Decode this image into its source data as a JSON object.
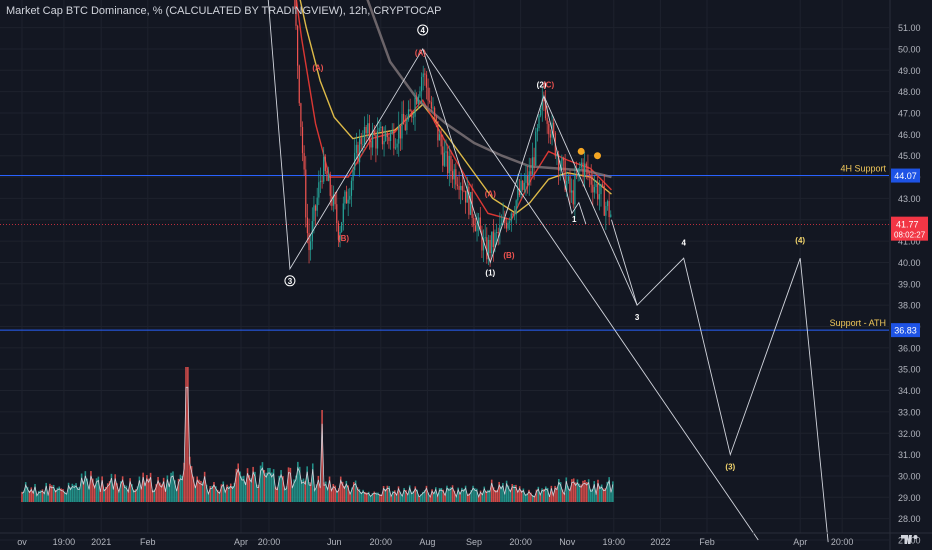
{
  "header": {
    "title": "Market Cap BTC Dominance, % (CALCULATED BY TRADINGVIEW), 12h, CRYPTOCAP"
  },
  "colors": {
    "background": "#131722",
    "grid": "#1e222d",
    "axis_text": "#b2b5be",
    "up": "#26a69a",
    "down": "#ef5350",
    "support_line": "#2962ff",
    "price_label_bg": "#f23645",
    "ma_yellow": "#e8c34b",
    "ma_red": "#e53935",
    "ma_gray": "#8a7f82",
    "projection": "#d1d4dc",
    "wave_label": "#ffffff",
    "wave_label_red": "#ef5350",
    "support_label_bg": "#1e53e5"
  },
  "chart_data": {
    "type": "line",
    "symbol": "BTC.D",
    "timeframe": "12h",
    "price_axis": {
      "ticks": [
        "27.00",
        "28.00",
        "29.00",
        "30.00",
        "31.00",
        "32.00",
        "33.00",
        "34.00",
        "35.00",
        "36.00",
        "37.00",
        "38.00",
        "39.00",
        "40.00",
        "41.00",
        "42.00",
        "43.00",
        "44.00",
        "45.00",
        "46.00",
        "47.00",
        "48.00",
        "49.00",
        "50.00",
        "51.00"
      ],
      "ylim": [
        26.8,
        51.2
      ]
    },
    "time_axis": {
      "ticks": [
        {
          "label": "ov",
          "t": 0.3
        },
        {
          "label": "19:00",
          "t": 1.2
        },
        {
          "label": "2021",
          "t": 2.0
        },
        {
          "label": "Feb",
          "t": 3.0
        },
        {
          "label": "Apr",
          "t": 5.0
        },
        {
          "label": "20:00",
          "t": 5.6
        },
        {
          "label": "Jun",
          "t": 7.0
        },
        {
          "label": "20:00",
          "t": 8.0
        },
        {
          "label": "Aug",
          "t": 9.0
        },
        {
          "label": "Sep",
          "t": 10.0
        },
        {
          "label": "20:00",
          "t": 11.0
        },
        {
          "label": "Nov",
          "t": 12.0
        },
        {
          "label": "19:00",
          "t": 13.0
        },
        {
          "label": "2022",
          "t": 14.0
        },
        {
          "label": "Feb",
          "t": 15.0
        },
        {
          "label": "Apr",
          "t": 17.0
        },
        {
          "label": "20:00",
          "t": 17.9
        }
      ]
    },
    "price_path": [
      [
        4.4,
        68.0
      ],
      [
        5.3,
        62.0
      ],
      [
        5.8,
        60.0
      ],
      [
        6.0,
        58.0
      ],
      [
        6.2,
        50.0
      ],
      [
        6.35,
        44.0
      ],
      [
        6.45,
        40.5
      ],
      [
        6.6,
        42.5
      ],
      [
        6.75,
        44.5
      ],
      [
        6.95,
        43.0
      ],
      [
        7.1,
        41.5
      ],
      [
        7.25,
        43.0
      ],
      [
        7.6,
        46.0
      ],
      [
        7.9,
        45.8
      ],
      [
        8.3,
        46.0
      ],
      [
        8.6,
        46.6
      ],
      [
        8.9,
        49.0
      ],
      [
        9.15,
        46.6
      ],
      [
        9.4,
        44.6
      ],
      [
        9.7,
        44.0
      ],
      [
        10.0,
        42.2
      ],
      [
        10.25,
        40.5
      ],
      [
        10.5,
        41.2
      ],
      [
        10.8,
        42.5
      ],
      [
        11.2,
        44.0
      ],
      [
        11.5,
        47.6
      ],
      [
        11.7,
        45.8
      ],
      [
        11.9,
        44.3
      ],
      [
        12.1,
        43.0
      ],
      [
        12.3,
        44.6
      ],
      [
        12.55,
        43.8
      ],
      [
        12.8,
        42.8
      ],
      [
        12.95,
        42.2
      ]
    ],
    "moving_averages": [
      {
        "color": "yellow",
        "points": [
          [
            5.9,
            56.0
          ],
          [
            6.4,
            51.0
          ],
          [
            6.7,
            48.5
          ],
          [
            7.0,
            46.8
          ],
          [
            7.4,
            45.8
          ],
          [
            7.8,
            46.0
          ],
          [
            8.3,
            46.2
          ],
          [
            8.9,
            47.4
          ],
          [
            9.4,
            46.0
          ],
          [
            9.9,
            44.5
          ],
          [
            10.4,
            43.0
          ],
          [
            10.9,
            42.3
          ],
          [
            11.2,
            42.8
          ],
          [
            11.6,
            43.9
          ],
          [
            12.0,
            44.2
          ],
          [
            12.5,
            44.0
          ],
          [
            12.95,
            43.2
          ]
        ]
      },
      {
        "color": "red",
        "points": [
          [
            5.9,
            57.0
          ],
          [
            6.3,
            50.5
          ],
          [
            6.6,
            46.5
          ],
          [
            6.9,
            44.0
          ],
          [
            7.3,
            44.0
          ],
          [
            7.8,
            45.8
          ],
          [
            8.3,
            46.1
          ],
          [
            8.9,
            47.6
          ],
          [
            9.4,
            45.6
          ],
          [
            9.9,
            43.7
          ],
          [
            10.3,
            42.3
          ],
          [
            10.8,
            42.0
          ],
          [
            11.2,
            43.8
          ],
          [
            11.6,
            45.2
          ],
          [
            12.0,
            44.8
          ],
          [
            12.5,
            44.4
          ],
          [
            12.95,
            43.4
          ]
        ]
      },
      {
        "color": "gray",
        "points": [
          [
            7.0,
            60.0
          ],
          [
            7.6,
            53.0
          ],
          [
            8.2,
            49.4
          ],
          [
            8.8,
            47.6
          ],
          [
            9.4,
            46.5
          ],
          [
            10.0,
            45.6
          ],
          [
            10.6,
            45.0
          ],
          [
            11.2,
            44.5
          ],
          [
            11.8,
            44.4
          ],
          [
            12.4,
            44.3
          ],
          [
            12.95,
            44.0
          ]
        ]
      }
    ],
    "wave_lines": [
      [
        [
          5.3,
          60.0
        ],
        [
          6.05,
          39.7
        ],
        [
          8.9,
          50.0
        ],
        [
          10.35,
          40.0
        ],
        [
          11.5,
          47.8
        ],
        [
          12.1,
          42.3
        ],
        [
          12.25,
          42.8
        ],
        [
          12.4,
          41.8
        ]
      ],
      [
        [
          8.9,
          50.0
        ],
        [
          16.1,
          27.0
        ]
      ],
      [
        [
          11.5,
          47.8
        ],
        [
          13.5,
          38.0
        ]
      ]
    ],
    "projection_path": [
      [
        12.95,
        42.0
      ],
      [
        13.5,
        38.0
      ],
      [
        14.5,
        40.2
      ],
      [
        15.5,
        31.0
      ],
      [
        17.0,
        40.2
      ],
      [
        17.6,
        26.9
      ]
    ],
    "volume": {
      "start_t": 0.3,
      "end_t": 13.0,
      "max_height_fraction": 1.0
    },
    "horizontal_lines": [
      {
        "name": "4H Support",
        "value": 44.07,
        "label": "4H Support",
        "price_label": "44.07"
      },
      {
        "name": "Support - ATH",
        "value": 36.83,
        "label": "Support - ATH",
        "price_label": "36.83"
      }
    ],
    "last_price": {
      "value": 41.77,
      "label": "41.77",
      "countdown": "08:02:27"
    },
    "wave_labels": [
      {
        "text": "3",
        "t": 6.05,
        "y": 39.0,
        "style": "circle",
        "color": "white"
      },
      {
        "text": "4",
        "t": 8.9,
        "y": 50.75,
        "style": "circle",
        "color": "white"
      },
      {
        "text": "(1)",
        "t": 10.35,
        "y": 39.4,
        "style": "plain",
        "color": "white"
      },
      {
        "text": "(2)",
        "t": 11.45,
        "y": 48.2,
        "style": "plain",
        "color": "white"
      },
      {
        "text": "(3)",
        "t": 15.5,
        "y": 30.3,
        "style": "plain",
        "color": "yellow"
      },
      {
        "text": "(4)",
        "t": 17.0,
        "y": 40.9,
        "style": "plain",
        "color": "yellow"
      },
      {
        "text": "4",
        "t": 14.5,
        "y": 40.8,
        "style": "plain",
        "color": "white"
      },
      {
        "text": "3",
        "t": 13.5,
        "y": 37.3,
        "style": "plain",
        "color": "white"
      },
      {
        "text": "1",
        "t": 12.15,
        "y": 41.9,
        "style": "plain",
        "color": "white"
      },
      {
        "text": "(B)",
        "t": 7.2,
        "y": 41.0,
        "style": "plain",
        "color": "red"
      },
      {
        "text": "(A)",
        "t": 6.65,
        "y": 49.0,
        "style": "plain",
        "color": "red"
      },
      {
        "text": "(A)",
        "t": 8.85,
        "y": 49.7,
        "style": "plain",
        "color": "red"
      },
      {
        "text": "(A)",
        "t": 10.35,
        "y": 43.1,
        "style": "plain",
        "color": "red"
      },
      {
        "text": "(B)",
        "t": 10.75,
        "y": 40.2,
        "style": "plain",
        "color": "red"
      },
      {
        "text": "(C)",
        "t": 11.6,
        "y": 48.2,
        "style": "plain",
        "color": "red"
      }
    ]
  }
}
